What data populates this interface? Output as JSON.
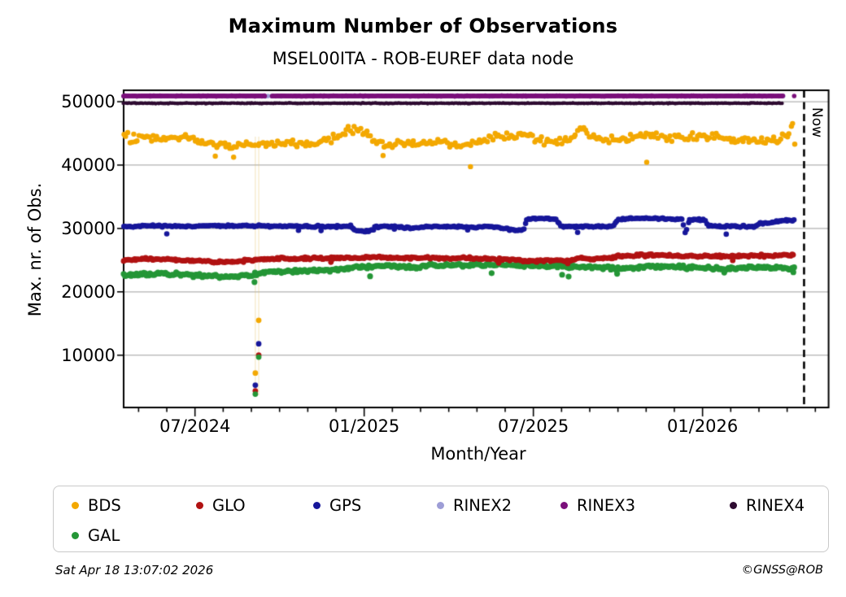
{
  "header": {
    "title": "Maximum Number of Observations",
    "subtitle": "MSEL00ITA - ROB-EUREF data node"
  },
  "footer": {
    "timestamp": "Sat Apr 18 13:07:02 2026",
    "copyright": "©GNSS@ROB"
  },
  "now_label": "Now",
  "legend": {
    "items": [
      {
        "label": "BDS",
        "color": "#f3a800"
      },
      {
        "label": "GLO",
        "color": "#b11212"
      },
      {
        "label": "GPS",
        "color": "#16169a"
      },
      {
        "label": "RINEX2",
        "color": "#9d9dd6"
      },
      {
        "label": "RINEX3",
        "color": "#7b107b"
      },
      {
        "label": "RINEX4",
        "color": "#2e0b31"
      },
      {
        "label": "GAL",
        "color": "#249636"
      }
    ]
  },
  "chart_data": {
    "type": "scatter",
    "title": "Maximum Number of Observations",
    "subtitle": "MSEL00ITA - ROB-EUREF data node",
    "xlabel": "Month/Year",
    "ylabel": "Max. nr. of Obs.",
    "x_axis": {
      "timeline_start": "mid-April 2024 at index 0, 1 unit = 1 month",
      "months_span": 25,
      "major_ticks": [
        {
          "idx": 2.53,
          "label": "07/2024"
        },
        {
          "idx": 8.53,
          "label": "01/2025"
        },
        {
          "idx": 14.53,
          "label": "07/2025"
        },
        {
          "idx": 20.53,
          "label": "01/2026"
        }
      ]
    },
    "y_axis": {
      "ticks": [
        {
          "value": 10000,
          "label": "10000"
        },
        {
          "value": 20000,
          "label": "20000"
        },
        {
          "value": 30000,
          "label": "30000"
        },
        {
          "value": 40000,
          "label": "40000"
        },
        {
          "value": 50000,
          "label": "50000"
        }
      ],
      "lim": [
        1750,
        51800
      ],
      "grid": true
    },
    "now_x_idx": 24.13,
    "dip_line_x_idxs": [
      4.67,
      4.79
    ],
    "dips": [
      {
        "x": 4.67,
        "values": {
          "BDS": 7180,
          "GPS": 5270,
          "GLO": 4370,
          "GAL": 3860
        }
      },
      {
        "x": 4.79,
        "values": {
          "BDS": 15500,
          "GPS": 11800,
          "GLO": 10020,
          "GAL": 9700
        }
      }
    ],
    "series": [
      {
        "name": "RINEX2",
        "color": "#9d9dd6",
        "radius": 2.8,
        "step": 0.09,
        "sigma": 40,
        "anchors": [
          [
            0,
            50880
          ],
          [
            23.4,
            50880
          ]
        ],
        "gaps": [],
        "outliers": []
      },
      {
        "name": "RINEX4",
        "color": "#2e0b31",
        "radius": 2.2,
        "step": 0.05,
        "sigma": 60,
        "anchors": [
          [
            0,
            49750
          ],
          [
            23.4,
            49750
          ]
        ],
        "gaps": [],
        "outliers": []
      },
      {
        "name": "RINEX3",
        "color": "#7b107b",
        "radius": 2.8,
        "step": 0.028,
        "sigma": 55,
        "anchors": [
          [
            0,
            50900
          ],
          [
            23.4,
            50900
          ]
        ],
        "gaps": [
          [
            5.02,
            5.25
          ]
        ],
        "outliers": [
          [
            23.78,
            50900
          ]
        ]
      },
      {
        "name": "GAL",
        "color": "#249636",
        "radius": 3.6,
        "step": 0.055,
        "sigma": 260,
        "anchors": [
          [
            0,
            22700
          ],
          [
            0.8,
            22800
          ],
          [
            1.6,
            22750
          ],
          [
            2.4,
            22650
          ],
          [
            3.1,
            22450
          ],
          [
            3.7,
            22350
          ],
          [
            4.2,
            22600
          ],
          [
            4.6,
            22700
          ],
          [
            5.0,
            23050
          ],
          [
            5.6,
            23250
          ],
          [
            6.4,
            23350
          ],
          [
            7.2,
            23450
          ],
          [
            7.8,
            23650
          ],
          [
            8.3,
            23950
          ],
          [
            9.0,
            24100
          ],
          [
            9.7,
            24050
          ],
          [
            10.4,
            23950
          ],
          [
            11.0,
            24150
          ],
          [
            11.8,
            24250
          ],
          [
            12.6,
            24200
          ],
          [
            13.4,
            24300
          ],
          [
            14.1,
            24200
          ],
          [
            14.6,
            24050
          ],
          [
            15.2,
            24150
          ],
          [
            15.9,
            24000
          ],
          [
            16.4,
            23850
          ],
          [
            16.9,
            23900
          ],
          [
            17.5,
            23650
          ],
          [
            18.0,
            23850
          ],
          [
            18.8,
            24050
          ],
          [
            19.5,
            23950
          ],
          [
            20.2,
            23850
          ],
          [
            20.9,
            23700
          ],
          [
            21.5,
            23650
          ],
          [
            22.1,
            23800
          ],
          [
            22.7,
            23850
          ],
          [
            23.3,
            23800
          ],
          [
            23.8,
            23550
          ]
        ],
        "gaps": [],
        "outliers": [
          [
            4.64,
            21540
          ],
          [
            8.74,
            22450
          ],
          [
            13.05,
            22950
          ],
          [
            15.55,
            22700
          ],
          [
            15.78,
            22400
          ],
          [
            17.5,
            22850
          ],
          [
            21.3,
            23050
          ],
          [
            23.75,
            23100
          ]
        ]
      },
      {
        "name": "GLO",
        "color": "#b11212",
        "radius": 3.4,
        "step": 0.055,
        "sigma": 190,
        "anchors": [
          [
            0,
            24950
          ],
          [
            0.8,
            25150
          ],
          [
            1.8,
            25100
          ],
          [
            2.6,
            24950
          ],
          [
            3.2,
            24750
          ],
          [
            3.8,
            24700
          ],
          [
            4.3,
            24900
          ],
          [
            4.95,
            25150
          ],
          [
            5.6,
            25250
          ],
          [
            6.5,
            25300
          ],
          [
            7.4,
            25280
          ],
          [
            8.2,
            25400
          ],
          [
            8.7,
            25500
          ],
          [
            9.3,
            25420
          ],
          [
            10.0,
            25350
          ],
          [
            11.0,
            25320
          ],
          [
            12.0,
            25300
          ],
          [
            12.8,
            25250
          ],
          [
            13.4,
            25120
          ],
          [
            14.0,
            24950
          ],
          [
            14.6,
            24820
          ],
          [
            15.2,
            25020
          ],
          [
            15.8,
            24870
          ],
          [
            16.2,
            25350
          ],
          [
            16.6,
            25120
          ],
          [
            17.0,
            25220
          ],
          [
            17.5,
            25600
          ],
          [
            18.2,
            25750
          ],
          [
            19.0,
            25800
          ],
          [
            19.6,
            25700
          ],
          [
            20.1,
            25620
          ],
          [
            20.7,
            25660
          ],
          [
            21.4,
            25650
          ],
          [
            22.0,
            25620
          ],
          [
            22.6,
            25700
          ],
          [
            23.2,
            25760
          ],
          [
            23.8,
            25850
          ]
        ],
        "gaps": [],
        "outliers": [
          [
            7.35,
            24680
          ],
          [
            13.3,
            24550
          ],
          [
            14.65,
            24700
          ],
          [
            15.75,
            24470
          ],
          [
            21.6,
            24950
          ]
        ]
      },
      {
        "name": "GPS",
        "color": "#16169a",
        "radius": 3.3,
        "step": 0.055,
        "sigma": 150,
        "anchors": [
          [
            0,
            30350
          ],
          [
            0.9,
            30400
          ],
          [
            1.8,
            30350
          ],
          [
            2.7,
            30400
          ],
          [
            3.6,
            30380
          ],
          [
            4.4,
            30450
          ],
          [
            4.95,
            30350
          ],
          [
            5.8,
            30350
          ],
          [
            6.6,
            30320
          ],
          [
            7.4,
            30300
          ],
          [
            8.05,
            30350
          ],
          [
            8.2,
            29650
          ],
          [
            8.5,
            29550
          ],
          [
            8.78,
            29700
          ],
          [
            8.95,
            30250
          ],
          [
            9.6,
            30300
          ],
          [
            10.15,
            30050
          ],
          [
            10.7,
            30250
          ],
          [
            11.5,
            30280
          ],
          [
            12.4,
            30200
          ],
          [
            13.1,
            30250
          ],
          [
            13.5,
            29950
          ],
          [
            13.95,
            29650
          ],
          [
            14.18,
            29800
          ],
          [
            14.28,
            31480
          ],
          [
            14.9,
            31550
          ],
          [
            15.35,
            31500
          ],
          [
            15.5,
            30350
          ],
          [
            16.0,
            30250
          ],
          [
            16.55,
            30320
          ],
          [
            17.35,
            30270
          ],
          [
            17.55,
            31480
          ],
          [
            18.3,
            31600
          ],
          [
            19.2,
            31550
          ],
          [
            19.82,
            31450
          ],
          [
            19.93,
            28900
          ],
          [
            20.04,
            31380
          ],
          [
            20.6,
            31400
          ],
          [
            20.72,
            30450
          ],
          [
            21.3,
            30350
          ],
          [
            22.0,
            30300
          ],
          [
            22.4,
            30280
          ],
          [
            22.55,
            30800
          ],
          [
            22.9,
            30780
          ],
          [
            23.15,
            31050
          ],
          [
            23.5,
            31250
          ],
          [
            23.8,
            31300
          ]
        ],
        "gaps": [],
        "outliers": [
          [
            1.53,
            29150
          ],
          [
            6.2,
            29700
          ],
          [
            7.0,
            29650
          ],
          [
            9.6,
            29900
          ],
          [
            12.2,
            29750
          ],
          [
            16.1,
            29380
          ],
          [
            21.37,
            29100
          ]
        ]
      },
      {
        "name": "BDS",
        "color": "#f3a800",
        "radius": 3.2,
        "step": 0.07,
        "sigma": 600,
        "anchors": [
          [
            0,
            44300
          ],
          [
            0.7,
            44500
          ],
          [
            1.5,
            44050
          ],
          [
            2.2,
            44350
          ],
          [
            2.8,
            43600
          ],
          [
            3.3,
            43150
          ],
          [
            3.8,
            42950
          ],
          [
            4.35,
            43300
          ],
          [
            4.95,
            43300
          ],
          [
            5.5,
            43650
          ],
          [
            6.3,
            43350
          ],
          [
            6.9,
            43600
          ],
          [
            7.4,
            44300
          ],
          [
            7.85,
            45300
          ],
          [
            8.3,
            45600
          ],
          [
            8.6,
            45050
          ],
          [
            8.9,
            44000
          ],
          [
            9.3,
            43150
          ],
          [
            9.8,
            43400
          ],
          [
            10.5,
            43400
          ],
          [
            11.2,
            43600
          ],
          [
            11.8,
            43150
          ],
          [
            12.5,
            43450
          ],
          [
            13.2,
            44500
          ],
          [
            13.8,
            44400
          ],
          [
            14.3,
            44800
          ],
          [
            14.9,
            43750
          ],
          [
            15.5,
            43600
          ],
          [
            16.0,
            44200
          ],
          [
            16.15,
            46350
          ],
          [
            16.45,
            45050
          ],
          [
            16.8,
            44250
          ],
          [
            17.3,
            44000
          ],
          [
            18.0,
            44500
          ],
          [
            18.6,
            44800
          ],
          [
            19.3,
            44250
          ],
          [
            19.9,
            44300
          ],
          [
            20.5,
            44550
          ],
          [
            21.1,
            44300
          ],
          [
            21.7,
            43950
          ],
          [
            22.3,
            43750
          ],
          [
            22.9,
            43650
          ],
          [
            23.3,
            43950
          ],
          [
            23.5,
            44600
          ],
          [
            23.62,
            45600
          ],
          [
            23.7,
            46400
          ],
          [
            23.78,
            47400
          ]
        ],
        "gaps": [],
        "outliers": [
          [
            3.25,
            41400
          ],
          [
            3.9,
            41250
          ],
          [
            9.2,
            41500
          ],
          [
            12.3,
            39750
          ],
          [
            18.55,
            40450
          ],
          [
            23.8,
            43300
          ]
        ]
      }
    ]
  }
}
